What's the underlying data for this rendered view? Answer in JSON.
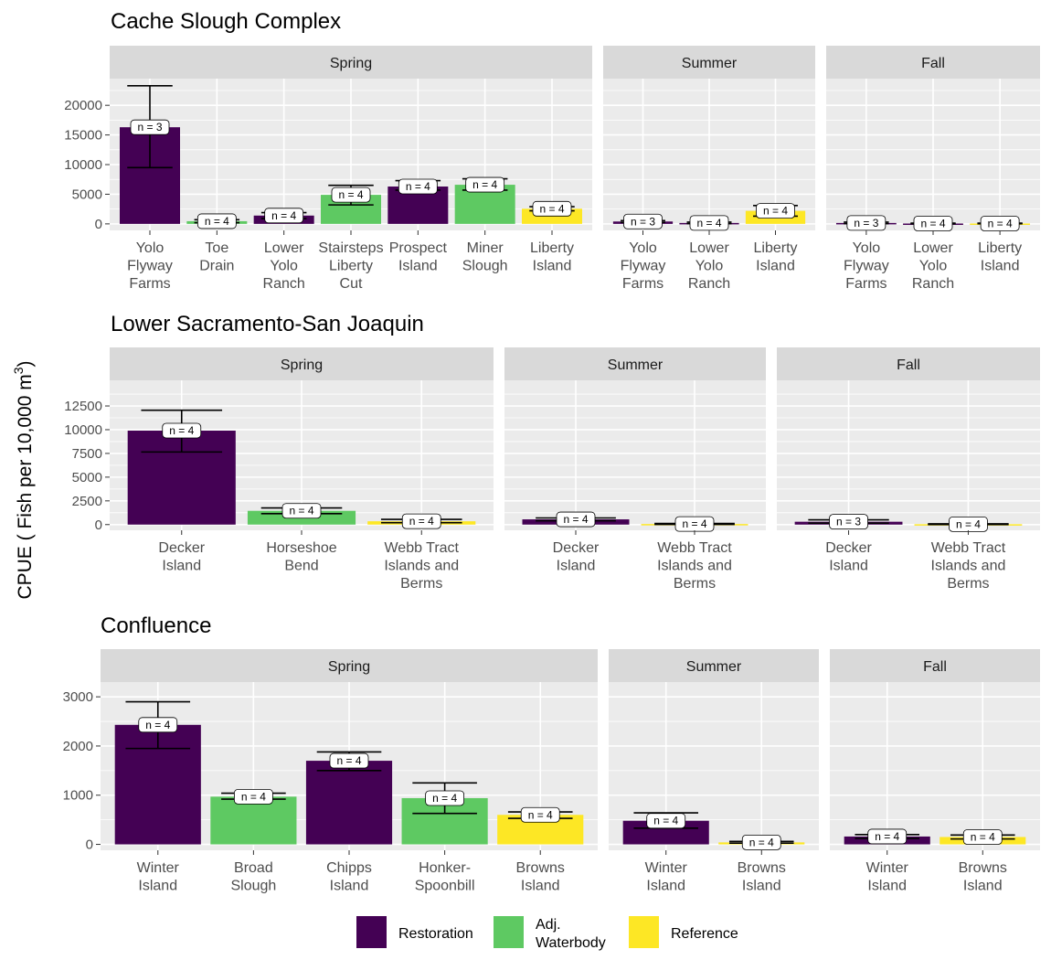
{
  "figure": {
    "ylabel": "CPUE ( Fish per 10,000 m",
    "ylabel_sup": "3",
    "ylabel_close": ")"
  },
  "legend": {
    "items": [
      {
        "label_lines": [
          "Restoration"
        ],
        "color": "#440154"
      },
      {
        "label_lines": [
          "Adj.",
          "Waterbody"
        ],
        "color": "#5EC962"
      },
      {
        "label_lines": [
          "Reference"
        ],
        "color": "#FDE725"
      }
    ]
  },
  "colors": {
    "Restoration": "#440154",
    "Adj. Waterbody": "#5EC962",
    "Reference": "#FDE725",
    "panel_bg": "#EBEBEB",
    "strip_bg": "#D9D9D9",
    "grid": "#FFFFFF"
  },
  "chart_data": [
    {
      "type": "bar",
      "title": "Cache Slough Complex",
      "ylim": [
        -1100,
        24500
      ],
      "yticks": [
        0,
        5000,
        10000,
        15000,
        20000
      ],
      "panels": [
        {
          "facet": "Spring",
          "categories": [
            [
              "Yolo",
              "Flyway",
              "Farms"
            ],
            [
              "Toe",
              "Drain"
            ],
            [
              "Lower",
              "Yolo",
              "Ranch"
            ],
            [
              "Stairsteps",
              "Liberty",
              "Cut"
            ],
            [
              "Prospect",
              "Island"
            ],
            [
              "Miner",
              "Slough"
            ],
            [
              "Liberty",
              "Island"
            ]
          ],
          "values": [
            16300,
            450,
            1400,
            4900,
            6300,
            6600,
            2550
          ],
          "err_low": [
            9500,
            200,
            900,
            3200,
            5700,
            5700,
            2200
          ],
          "err_high": [
            23300,
            700,
            1900,
            6500,
            7300,
            7600,
            2900
          ],
          "groups": [
            "Restoration",
            "Adj. Waterbody",
            "Restoration",
            "Adj. Waterbody",
            "Restoration",
            "Adj. Waterbody",
            "Reference"
          ],
          "n": [
            3,
            4,
            4,
            4,
            4,
            4,
            4
          ]
        },
        {
          "facet": "Summer",
          "categories": [
            [
              "Yolo",
              "Flyway",
              "Farms"
            ],
            [
              "Lower",
              "Yolo",
              "Ranch"
            ],
            [
              "Liberty",
              "Island"
            ]
          ],
          "values": [
            400,
            150,
            2200
          ],
          "err_low": [
            250,
            50,
            1300
          ],
          "err_high": [
            550,
            300,
            3100
          ],
          "groups": [
            "Restoration",
            "Restoration",
            "Reference"
          ],
          "n": [
            3,
            4,
            4
          ]
        },
        {
          "facet": "Fall",
          "categories": [
            [
              "Yolo",
              "Flyway",
              "Farms"
            ],
            [
              "Lower",
              "Yolo",
              "Ranch"
            ],
            [
              "Liberty",
              "Island"
            ]
          ],
          "values": [
            150,
            60,
            60
          ],
          "err_low": [
            50,
            20,
            20
          ],
          "err_high": [
            300,
            120,
            120
          ],
          "groups": [
            "Restoration",
            "Restoration",
            "Reference"
          ],
          "n": [
            3,
            4,
            4
          ]
        }
      ]
    },
    {
      "type": "bar",
      "title": "Lower Sacramento-San Joaquin",
      "ylim": [
        -600,
        15200
      ],
      "yticks": [
        0,
        2500,
        5000,
        7500,
        10000,
        12500
      ],
      "panels": [
        {
          "facet": "Spring",
          "categories": [
            [
              "Decker",
              "Island"
            ],
            [
              "Horseshoe",
              "Bend"
            ],
            [
              "Webb Tract",
              "Islands and",
              "Berms"
            ]
          ],
          "values": [
            9900,
            1450,
            350
          ],
          "err_low": [
            7650,
            1150,
            200
          ],
          "err_high": [
            12050,
            1750,
            550
          ],
          "groups": [
            "Restoration",
            "Adj. Waterbody",
            "Reference"
          ],
          "n": [
            4,
            4,
            4
          ]
        },
        {
          "facet": "Summer",
          "categories": [
            [
              "Decker",
              "Island"
            ],
            [
              "Webb Tract",
              "Islands and",
              "Berms"
            ]
          ],
          "values": [
            550,
            60
          ],
          "err_low": [
            400,
            20
          ],
          "err_high": [
            700,
            120
          ],
          "groups": [
            "Restoration",
            "Reference"
          ],
          "n": [
            4,
            4
          ]
        },
        {
          "facet": "Fall",
          "categories": [
            [
              "Decker",
              "Island"
            ],
            [
              "Webb Tract",
              "Islands and",
              "Berms"
            ]
          ],
          "values": [
            300,
            40
          ],
          "err_low": [
            150,
            10
          ],
          "err_high": [
            500,
            80
          ],
          "groups": [
            "Restoration",
            "Reference"
          ],
          "n": [
            3,
            4
          ]
        }
      ]
    },
    {
      "type": "bar",
      "title": "Confluence",
      "ylim": [
        -120,
        3300
      ],
      "yticks": [
        0,
        1000,
        2000,
        3000
      ],
      "panels": [
        {
          "facet": "Spring",
          "categories": [
            [
              "Winter",
              "Island"
            ],
            [
              "Broad",
              "Slough"
            ],
            [
              "Chipps",
              "Island"
            ],
            [
              "Honker-",
              "Spoonbill"
            ],
            [
              "Browns",
              "Island"
            ]
          ],
          "values": [
            2430,
            970,
            1700,
            940,
            600
          ],
          "err_low": [
            1950,
            920,
            1500,
            630,
            530
          ],
          "err_high": [
            2900,
            1040,
            1880,
            1250,
            660
          ],
          "groups": [
            "Restoration",
            "Adj. Waterbody",
            "Restoration",
            "Adj. Waterbody",
            "Reference"
          ],
          "n": [
            4,
            4,
            4,
            4,
            4
          ]
        },
        {
          "facet": "Summer",
          "categories": [
            [
              "Winter",
              "Island"
            ],
            [
              "Browns",
              "Island"
            ]
          ],
          "values": [
            480,
            40
          ],
          "err_low": [
            330,
            25
          ],
          "err_high": [
            640,
            60
          ],
          "groups": [
            "Restoration",
            "Reference"
          ],
          "n": [
            4,
            4
          ]
        },
        {
          "facet": "Fall",
          "categories": [
            [
              "Winter",
              "Island"
            ],
            [
              "Browns",
              "Island"
            ]
          ],
          "values": [
            160,
            150
          ],
          "err_low": [
            120,
            110
          ],
          "err_high": [
            200,
            190
          ],
          "groups": [
            "Restoration",
            "Reference"
          ],
          "n": [
            4,
            4
          ]
        }
      ]
    }
  ]
}
